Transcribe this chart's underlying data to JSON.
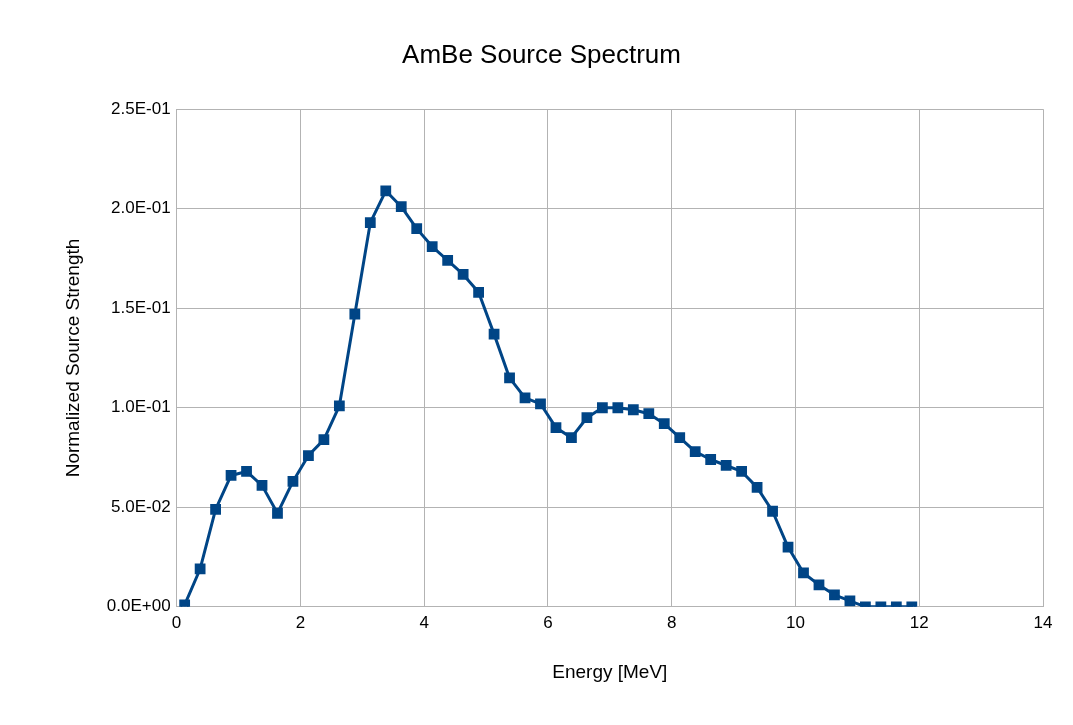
{
  "chart_data": {
    "type": "line",
    "title": "AmBe Source Spectrum",
    "xlabel": "Energy [MeV]",
    "ylabel": "Normalized Source Strength",
    "x": [
      0.13,
      0.38,
      0.63,
      0.88,
      1.13,
      1.38,
      1.63,
      1.88,
      2.13,
      2.38,
      2.63,
      2.88,
      3.13,
      3.38,
      3.63,
      3.88,
      4.13,
      4.38,
      4.63,
      4.88,
      5.13,
      5.38,
      5.63,
      5.88,
      6.13,
      6.38,
      6.63,
      6.88,
      7.13,
      7.38,
      7.63,
      7.88,
      8.13,
      8.38,
      8.63,
      8.88,
      9.13,
      9.38,
      9.63,
      9.88,
      10.13,
      10.38,
      10.63,
      10.88,
      11.13,
      11.38,
      11.63,
      11.88
    ],
    "series": [
      {
        "color": "#004586",
        "values": [
          0.001,
          0.019,
          0.049,
          0.066,
          0.068,
          0.061,
          0.047,
          0.063,
          0.076,
          0.084,
          0.101,
          0.147,
          0.193,
          0.209,
          0.201,
          0.19,
          0.181,
          0.174,
          0.167,
          0.158,
          0.137,
          0.115,
          0.105,
          0.102,
          0.09,
          0.085,
          0.095,
          0.1,
          0.1,
          0.099,
          0.097,
          0.092,
          0.085,
          0.078,
          0.074,
          0.071,
          0.068,
          0.06,
          0.048,
          0.03,
          0.017,
          0.011,
          0.006,
          0.003,
          0,
          0,
          0,
          0
        ]
      }
    ],
    "xlim": [
      0,
      14
    ],
    "xticks": [
      0,
      2,
      4,
      6,
      8,
      10,
      12,
      14
    ],
    "ylim": [
      0,
      0.25
    ],
    "yticks": [
      {
        "value": 0,
        "label": "0.0E+00"
      },
      {
        "value": 0.05,
        "label": "5.0E-02"
      },
      {
        "value": 0.1,
        "label": "1.0E-01"
      },
      {
        "value": 0.15,
        "label": "1.5E-01"
      },
      {
        "value": 0.2,
        "label": "2.0E-01"
      },
      {
        "value": 0.25,
        "label": "2.5E-01"
      }
    ],
    "grid": true,
    "legend": false,
    "marker": "square",
    "line_style": "solid"
  }
}
